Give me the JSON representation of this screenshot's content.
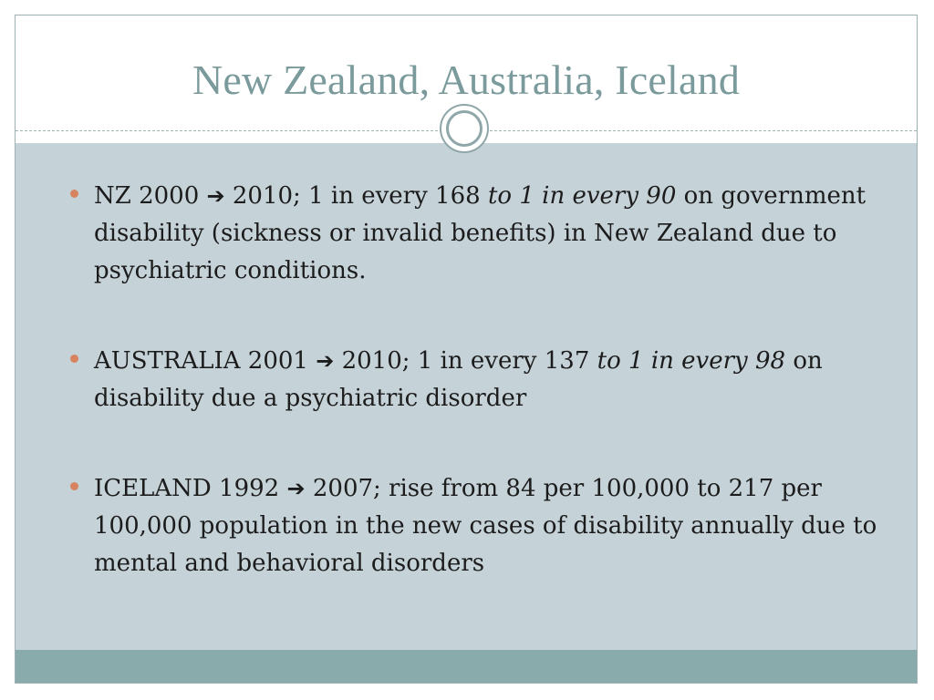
{
  "slide": {
    "title": "New Zealand, Australia, Iceland"
  },
  "bullets": [
    {
      "pre": "NZ 2000 ",
      "arrow": "➔",
      "mid": " 2010; 1 in every 168 ",
      "italic": "to 1 in every 90",
      "post": " on government disability (sickness or invalid benefits) in New Zealand due to psychiatric conditions."
    },
    {
      "pre": "AUSTRALIA 2001 ",
      "arrow": "➔",
      "mid": " 2010; 1 in every 137 ",
      "italic": "to 1 in every 98",
      "post": " on disability due a psychiatric disorder"
    },
    {
      "pre": "ICELAND 1992 ",
      "arrow": "➔",
      "mid": " 2007; rise from 84 per 100,000 to 217 per 100,000 population in the new cases of disability annually due to mental and behavioral disorders",
      "italic": "",
      "post": ""
    }
  ],
  "colors": {
    "title": "#7a9a9c",
    "content_bg": "#c5d2d8",
    "bullet": "#d8835f",
    "footer": "#8aabab"
  }
}
